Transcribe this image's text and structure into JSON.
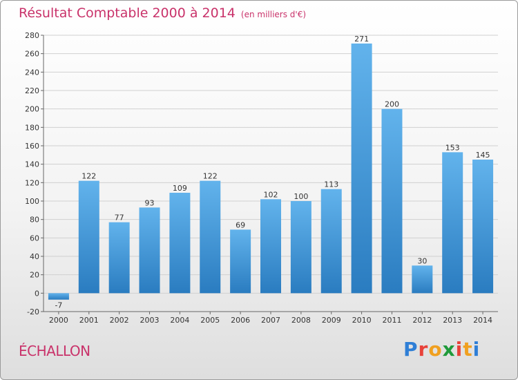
{
  "title": "Résultat Comptable 2000 à 2014",
  "subtitle": "(en milliers d'€)",
  "commune": "ÉCHALLON",
  "brand": {
    "letters": [
      "P",
      "r",
      "o",
      "x",
      "i",
      "t",
      "i"
    ],
    "colors": [
      "#2f7fd6",
      "#e8423a",
      "#f0a020",
      "#1f9a3a",
      "#e8423a",
      "#f0a020",
      "#2f7fd6"
    ]
  },
  "colors": {
    "bar_top": "#62b3ec",
    "bar_bottom": "#2a7cc0",
    "title": "#c9326a"
  },
  "chart_data": {
    "type": "bar",
    "categories": [
      "2000",
      "2001",
      "2002",
      "2003",
      "2004",
      "2005",
      "2006",
      "2007",
      "2008",
      "2009",
      "2010",
      "2011",
      "2012",
      "2013",
      "2014"
    ],
    "values": [
      -7,
      122,
      77,
      93,
      109,
      122,
      69,
      102,
      100,
      113,
      271,
      200,
      30,
      153,
      145
    ],
    "ylim": [
      -20,
      280
    ],
    "yticks": [
      -20,
      0,
      20,
      40,
      60,
      80,
      100,
      120,
      140,
      160,
      180,
      200,
      220,
      240,
      260,
      280
    ],
    "grid": "horizontal",
    "legend": "none"
  }
}
